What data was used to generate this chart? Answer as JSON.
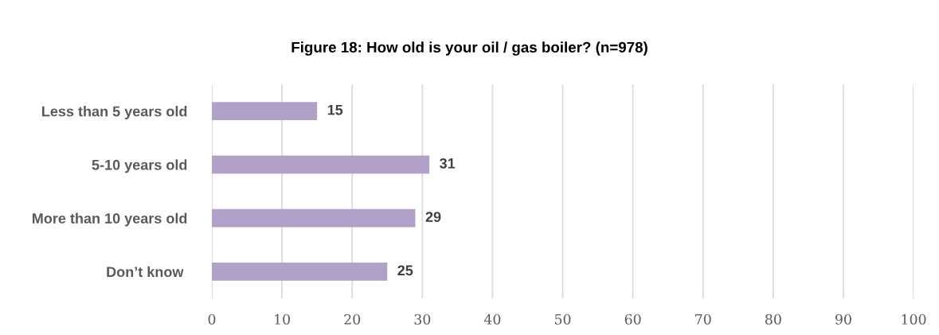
{
  "chart_data": {
    "type": "bar",
    "orientation": "horizontal",
    "title": "Figure 18: How old is your oil / gas boiler? (n=978)",
    "categories": [
      "Less than 5 years old",
      "5-10 years old",
      "More than 10 years old",
      "Don’t know "
    ],
    "values": [
      15,
      31,
      29,
      25
    ],
    "color": "#b1a0c7",
    "xlim": [
      0,
      100
    ],
    "xticks": [
      0,
      10,
      20,
      30,
      40,
      50,
      60,
      70,
      80,
      90,
      100
    ],
    "grid": "x",
    "data_labels": true
  }
}
